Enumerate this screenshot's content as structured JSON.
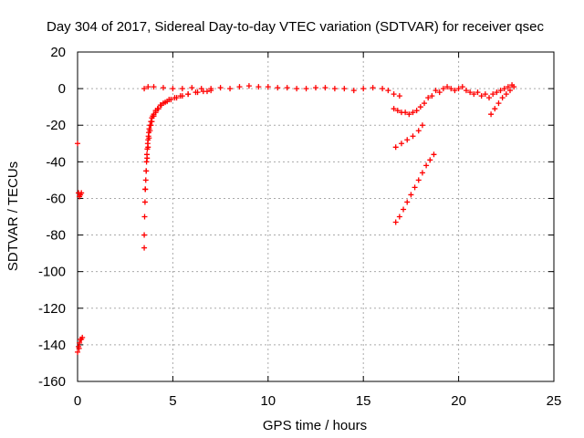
{
  "chart_data": {
    "type": "scatter",
    "title": "Day 304 of 2017, Sidereal Day-to-day VTEC variation (SDTVAR) for receiver qsec",
    "xlabel": "GPS time / hours",
    "ylabel": "SDTVAR / TECUs",
    "xlim": [
      0,
      25
    ],
    "ylim": [
      -160,
      20
    ],
    "xticks": [
      0,
      5,
      10,
      15,
      20,
      25
    ],
    "yticks": [
      20,
      0,
      -20,
      -40,
      -60,
      -80,
      -100,
      -120,
      -140,
      -160
    ],
    "grid": true,
    "marker": "+",
    "series": [
      {
        "name": "SDTVAR",
        "color": "#ff0000",
        "x": [
          0.0,
          0.05,
          0.1,
          0.15,
          0.2,
          0.0,
          0.05,
          0.1,
          0.15,
          0.2,
          0.25,
          0.08,
          3.5,
          3.5,
          3.52,
          3.54,
          3.56,
          3.58,
          3.6,
          3.62,
          3.64,
          3.66,
          3.68,
          3.7,
          3.72,
          3.74,
          3.76,
          3.8,
          3.85,
          3.9,
          3.95,
          4.0,
          4.1,
          4.2,
          4.35,
          4.5,
          4.7,
          4.9,
          5.2,
          5.5,
          5.8,
          6.2,
          6.6,
          7.0,
          3.55,
          3.6,
          3.65,
          3.7,
          3.75,
          3.8,
          3.85,
          3.9,
          4.0,
          4.1,
          4.25,
          4.4,
          4.6,
          4.8,
          5.1,
          5.4,
          5.8,
          6.3,
          6.8,
          3.5,
          3.7,
          4.0,
          4.5,
          5.0,
          5.5,
          6.0,
          6.5,
          7.0,
          7.5,
          8.0,
          8.5,
          9.0,
          9.5,
          10.0,
          10.5,
          11.0,
          11.5,
          12.0,
          12.5,
          13.0,
          13.5,
          14.0,
          14.5,
          15.0,
          15.5,
          16.0,
          16.3,
          16.6,
          16.9,
          16.6,
          16.8,
          17.0,
          17.2,
          17.4,
          17.6,
          17.8,
          18.0,
          18.2,
          18.4,
          18.6,
          18.8,
          19.0,
          19.2,
          19.4,
          19.6,
          19.8,
          20.0,
          20.2,
          20.4,
          20.6,
          20.8,
          21.0,
          21.2,
          21.4,
          21.6,
          21.8,
          22.0,
          22.2,
          22.4,
          22.6,
          22.8,
          16.7,
          17.0,
          17.3,
          17.6,
          17.9,
          18.1,
          16.7,
          16.9,
          17.1,
          17.3,
          17.5,
          17.7,
          17.9,
          18.1,
          18.3,
          18.5,
          18.7,
          21.7,
          21.9,
          22.1,
          22.3,
          22.5,
          22.7,
          22.9
        ],
        "y": [
          -30,
          -57,
          -59,
          -58,
          -57,
          -144,
          -141,
          -139,
          -137,
          -137,
          -136,
          -142,
          -87,
          -80,
          -70,
          -62,
          -55,
          -50,
          -45,
          -40,
          -36,
          -33,
          -30,
          -28,
          -26,
          -24,
          -22,
          -20,
          -18,
          -16,
          -15,
          -14,
          -12,
          -11,
          -9,
          -8,
          -7,
          -6,
          -5,
          -4,
          -3,
          -2,
          -1.5,
          -1,
          -55,
          -45,
          -38,
          -32,
          -27,
          -23,
          -20,
          -18,
          -15,
          -13,
          -11,
          -9,
          -7.5,
          -6,
          -5,
          -4,
          -3,
          -2,
          -1.5,
          0,
          1,
          1,
          0.5,
          0,
          0,
          0.5,
          0,
          0,
          0.5,
          0,
          1,
          1.5,
          1,
          1,
          0.5,
          0.5,
          0,
          0,
          0.5,
          0.5,
          0,
          0,
          -1,
          0,
          0.5,
          0,
          -1,
          -3,
          -4,
          -11,
          -12,
          -13,
          -13,
          -14,
          -13,
          -12,
          -10,
          -8,
          -5,
          -4,
          -1,
          -2,
          0,
          1,
          0,
          -1,
          0,
          1,
          -1,
          -2,
          -3,
          -2,
          -4,
          -3,
          -5,
          -3,
          -2,
          -1,
          0,
          1,
          2,
          -32,
          -30,
          -28,
          -26,
          -23,
          -20,
          -73,
          -70,
          -66,
          -62,
          -58,
          -54,
          -50,
          -46,
          -42,
          -39,
          -36,
          -14,
          -11,
          -8,
          -5,
          -3,
          -1,
          1
        ]
      }
    ]
  }
}
